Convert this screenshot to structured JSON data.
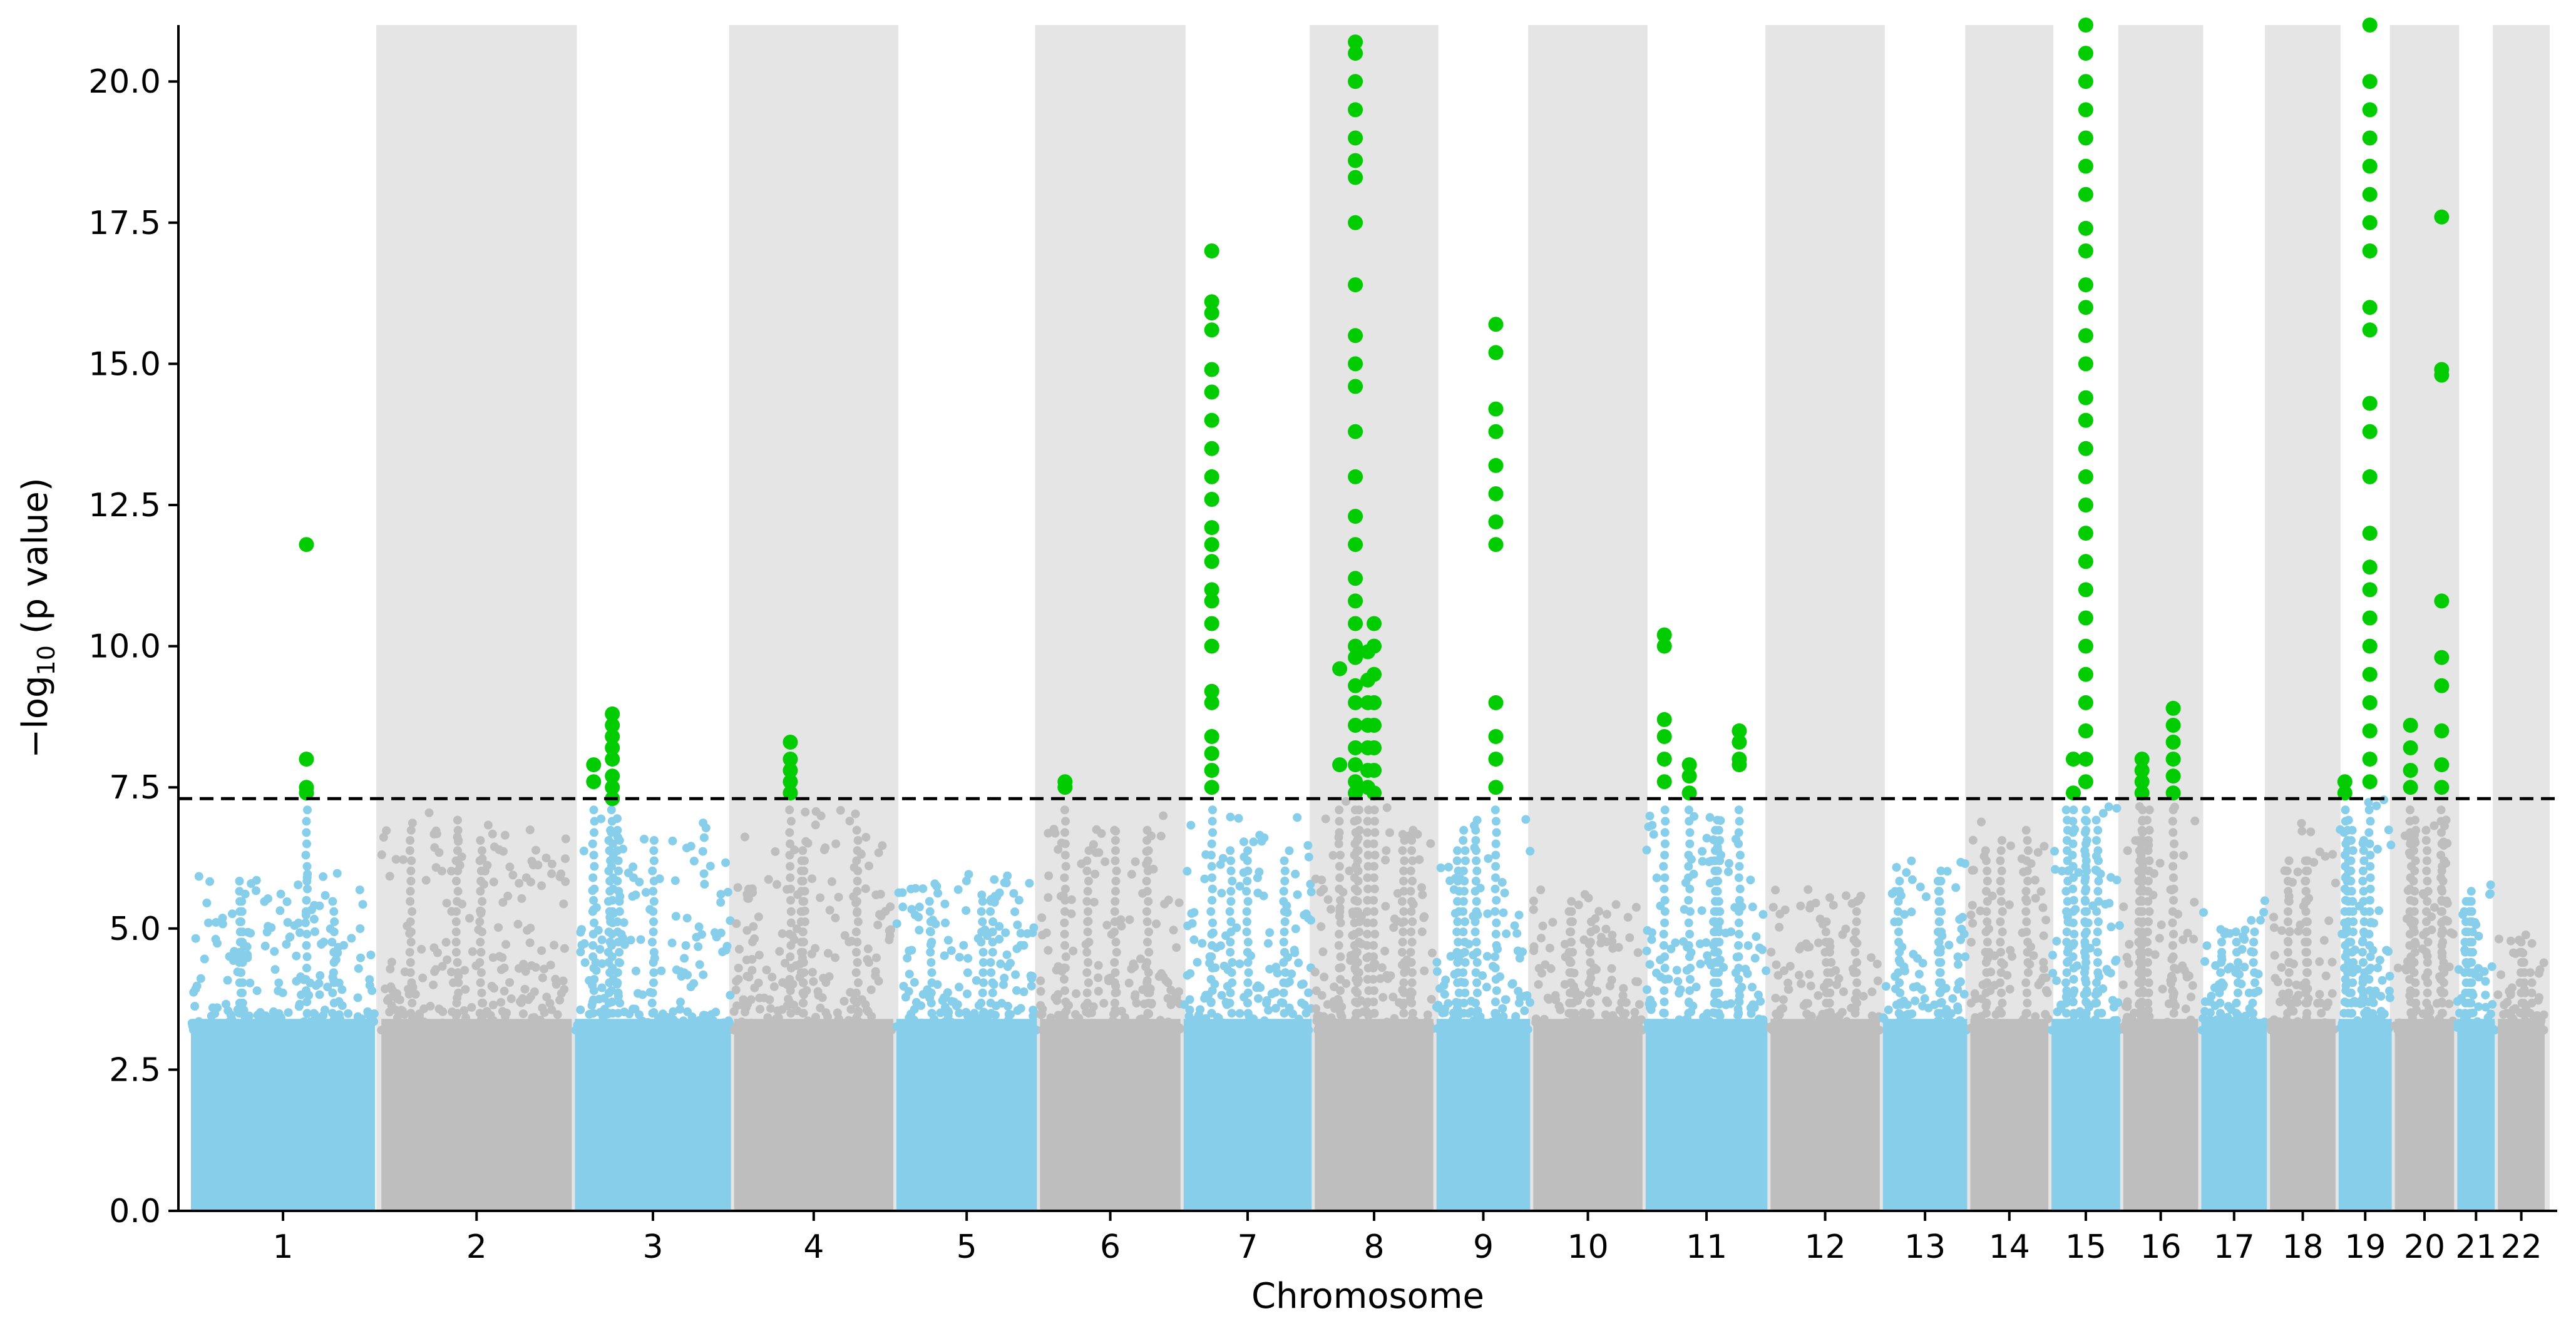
{
  "chart_data": {
    "type": "scatter",
    "subtype": "manhattan",
    "title": "",
    "xlabel": "Chromosome",
    "ylabel_parts": {
      "prefix": "−log",
      "sub": "10",
      "suffix": " (p value)"
    },
    "ylim": [
      0,
      21
    ],
    "yticks": [
      0.0,
      2.5,
      5.0,
      7.5,
      10.0,
      12.5,
      15.0,
      17.5,
      20.0
    ],
    "ytick_labels": [
      "0.0",
      "2.5",
      "5.0",
      "7.5",
      "10.0",
      "12.5",
      "15.0",
      "17.5",
      "20.0"
    ],
    "significance_threshold": 7.3,
    "grid": false,
    "legend": "none",
    "colors": {
      "odd": "#87CEEB",
      "even": "#BEBEBE",
      "significant": "#00CC00",
      "band": "#E5E5E5",
      "threshold": "#000000"
    },
    "chromosomes": [
      {
        "label": "1",
        "start": 0,
        "end": 29.5,
        "base_max": 6.0,
        "hits": [
          {
            "pos": 18.5,
            "values": [
              11.8,
              8.0,
              7.5,
              7.4
            ]
          }
        ]
      },
      {
        "label": "2",
        "start": 30.5,
        "end": 61.0,
        "base_max": 7.1,
        "hits": []
      },
      {
        "label": "3",
        "start": 61.5,
        "end": 86.5,
        "base_max": 7.0,
        "hits": [
          {
            "pos": 3,
            "values": [
              7.9,
              7.6
            ]
          },
          {
            "pos": 6,
            "values": [
              8.8,
              8.6,
              8.4,
              8.2,
              8.0,
              7.7,
              7.5,
              7.3
            ]
          }
        ]
      },
      {
        "label": "4",
        "start": 87.0,
        "end": 112.5,
        "base_max": 7.1,
        "hits": [
          {
            "pos": 9,
            "values": [
              8.3,
              8.0,
              7.8,
              7.6,
              7.4
            ]
          }
        ]
      },
      {
        "label": "5",
        "start": 113.0,
        "end": 135.5,
        "base_max": 6.0,
        "hits": []
      },
      {
        "label": "6",
        "start": 136.0,
        "end": 158.5,
        "base_max": 7.0,
        "hits": [
          {
            "pos": 4,
            "values": [
              7.6,
              7.5
            ]
          }
        ]
      },
      {
        "label": "7",
        "start": 159.0,
        "end": 179.5,
        "base_max": 7.0,
        "hits": [
          {
            "pos": 4.5,
            "values": [
              17.0,
              16.1,
              15.9,
              15.6,
              14.9,
              14.5,
              14.0,
              13.5,
              13.0,
              12.6,
              12.1,
              11.8,
              11.5,
              11.0,
              10.8,
              10.4,
              10.0,
              9.2,
              9.0,
              8.4,
              8.1,
              7.8,
              7.5
            ]
          }
        ]
      },
      {
        "label": "8",
        "start": 180.0,
        "end": 199.0,
        "base_max": 7.3,
        "hits": [
          {
            "pos": 4,
            "values": [
              9.6,
              7.9
            ]
          },
          {
            "pos": 6.5,
            "values": [
              20.7,
              20.5,
              20.0,
              19.5,
              19.0,
              18.6,
              18.3,
              17.5,
              16.4,
              15.5,
              15.0,
              14.6,
              13.8,
              13.0,
              12.3,
              11.8,
              11.2,
              10.8,
              10.4,
              10.0,
              9.8,
              9.3,
              9.0,
              8.6,
              8.2,
              7.9,
              7.6,
              7.4
            ]
          },
          {
            "pos": 8.5,
            "values": [
              9.9,
              9.4,
              9.0,
              8.6,
              8.2,
              7.8,
              7.5
            ]
          },
          {
            "pos": 9.5,
            "values": [
              10.4,
              10.0,
              9.5,
              9.0,
              8.6,
              8.2,
              7.8,
              7.4
            ]
          }
        ]
      },
      {
        "label": "9",
        "start": 199.5,
        "end": 214.5,
        "base_max": 7.1,
        "hits": [
          {
            "pos": 9.5,
            "values": [
              15.7,
              15.2,
              14.2,
              13.8,
              13.2,
              12.7,
              12.2,
              11.8,
              9.0,
              8.4,
              8.0,
              7.5
            ]
          }
        ]
      },
      {
        "label": "10",
        "start": 215.0,
        "end": 232.5,
        "base_max": 5.7,
        "hits": []
      },
      {
        "label": "11",
        "start": 233.0,
        "end": 252.5,
        "base_max": 7.0,
        "hits": [
          {
            "pos": 3,
            "values": [
              10.2,
              10.0,
              8.7,
              8.4,
              8.0,
              7.6
            ]
          },
          {
            "pos": 7,
            "values": [
              7.9,
              7.7,
              7.4
            ]
          },
          {
            "pos": 15,
            "values": [
              8.5,
              8.3,
              8.0,
              7.9
            ]
          }
        ]
      },
      {
        "label": "12",
        "start": 253.0,
        "end": 270.5,
        "base_max": 5.7,
        "hits": []
      },
      {
        "label": "13",
        "start": 271.0,
        "end": 284.5,
        "base_max": 6.3,
        "hits": []
      },
      {
        "label": "14",
        "start": 285.0,
        "end": 297.5,
        "base_max": 7.0,
        "hits": []
      },
      {
        "label": "15",
        "start": 298.0,
        "end": 309.0,
        "base_max": 7.3,
        "hits": [
          {
            "pos": 5.5,
            "values": [
              21.0,
              20.5,
              20.0,
              19.5,
              19.0,
              18.5,
              18.0,
              17.4,
              17.0,
              16.4,
              16.0,
              15.5,
              15.0,
              14.4,
              14.0,
              13.5,
              13.0,
              12.5,
              12.0,
              11.5,
              11.0,
              10.5,
              10.0,
              9.5,
              9.0,
              8.5,
              8.0,
              7.6
            ]
          },
          {
            "pos": 3.5,
            "values": [
              8.0,
              7.4
            ]
          }
        ]
      },
      {
        "label": "16",
        "start": 309.5,
        "end": 321.5,
        "base_max": 7.3,
        "hits": [
          {
            "pos": 3,
            "values": [
              8.0,
              7.8,
              7.6,
              7.4
            ]
          },
          {
            "pos": 8,
            "values": [
              8.9,
              8.6,
              8.3,
              8.0,
              7.7,
              7.4
            ]
          }
        ]
      },
      {
        "label": "17",
        "start": 322.0,
        "end": 332.5,
        "base_max": 5.6,
        "hits": []
      },
      {
        "label": "18",
        "start": 333.0,
        "end": 343.5,
        "base_max": 7.0,
        "hits": []
      },
      {
        "label": "19",
        "start": 344.0,
        "end": 352.5,
        "base_max": 7.3,
        "hits": [
          {
            "pos": 1,
            "values": [
              7.6,
              7.4
            ]
          },
          {
            "pos": 5,
            "values": [
              21.0,
              20.0,
              19.5,
              19.0,
              18.5,
              18.0,
              17.5,
              17.0,
              16.0,
              15.6,
              14.3,
              13.8,
              13.0,
              12.0,
              11.4,
              11.0,
              10.5,
              10.0,
              9.5,
              9.0,
              8.5,
              8.0,
              7.6
            ]
          }
        ]
      },
      {
        "label": "20",
        "start": 353.0,
        "end": 362.5,
        "base_max": 7.0,
        "hits": [
          {
            "pos": 2.5,
            "values": [
              8.6,
              8.2,
              7.8,
              7.5
            ]
          },
          {
            "pos": 7.5,
            "values": [
              17.6,
              14.9,
              14.8,
              10.8,
              9.8,
              9.3,
              8.5,
              7.9,
              7.5
            ]
          }
        ]
      },
      {
        "label": "21",
        "start": 363.0,
        "end": 369.0,
        "base_max": 5.8,
        "hits": []
      },
      {
        "label": "22",
        "start": 369.5,
        "end": 377.0,
        "base_max": 4.9,
        "hits": []
      }
    ]
  }
}
